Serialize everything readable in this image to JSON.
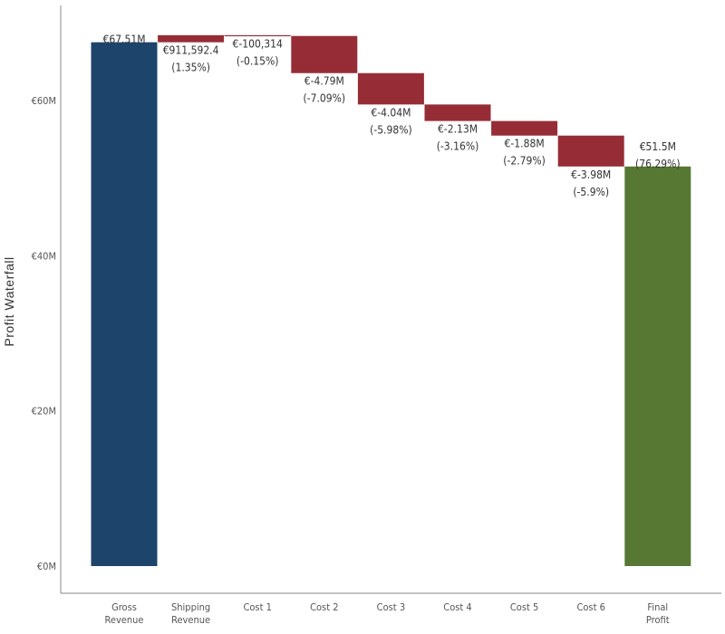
{
  "colors": {
    "total_start": "#1d446b",
    "increase": "#962d36",
    "decrease": "#962d36",
    "total_end": "#577832",
    "axis": "#888888"
  },
  "chart_data": {
    "type": "waterfall",
    "ylabel": "Profit Waterfall",
    "ylim": [
      0,
      70000000
    ],
    "yticks": [
      {
        "value": 0,
        "label": "€0M"
      },
      {
        "value": 20000000,
        "label": "€20M"
      },
      {
        "value": 40000000,
        "label": "€40M"
      },
      {
        "value": 60000000,
        "label": "€60M"
      }
    ],
    "steps": [
      {
        "category": [
          "Gross",
          "Revenue"
        ],
        "kind": "total",
        "start": 0,
        "end": 67510000,
        "value_label": "€67.51M",
        "pct_label": ""
      },
      {
        "category": [
          "Shipping",
          "Revenue"
        ],
        "kind": "increase",
        "start": 67510000,
        "end": 68421592,
        "value_label": "€911,592.4",
        "pct_label": "(1.35%)"
      },
      {
        "category": [
          "Cost 1"
        ],
        "kind": "decrease",
        "start": 68421592,
        "end": 68321278,
        "value_label": "€-100,314",
        "pct_label": "(-0.15%)"
      },
      {
        "category": [
          "Cost 2"
        ],
        "kind": "decrease",
        "start": 68321278,
        "end": 63531278,
        "value_label": "€-4.79M",
        "pct_label": "(-7.09%)"
      },
      {
        "category": [
          "Cost 3"
        ],
        "kind": "decrease",
        "start": 63531278,
        "end": 59491278,
        "value_label": "€-4.04M",
        "pct_label": "(-5.98%)"
      },
      {
        "category": [
          "Cost 4"
        ],
        "kind": "decrease",
        "start": 59491278,
        "end": 57361278,
        "value_label": "€-2.13M",
        "pct_label": "(-3.16%)"
      },
      {
        "category": [
          "Cost 5"
        ],
        "kind": "decrease",
        "start": 57361278,
        "end": 55481278,
        "value_label": "€-1.88M",
        "pct_label": "(-2.79%)"
      },
      {
        "category": [
          "Cost 6"
        ],
        "kind": "decrease",
        "start": 55481278,
        "end": 51500000,
        "value_label": "€-3.98M",
        "pct_label": "(-5.9%)"
      },
      {
        "category": [
          "Final",
          "Profit"
        ],
        "kind": "total",
        "start": 0,
        "end": 51500000,
        "value_label": "€51.5M",
        "pct_label": "(76.29%)"
      }
    ]
  }
}
